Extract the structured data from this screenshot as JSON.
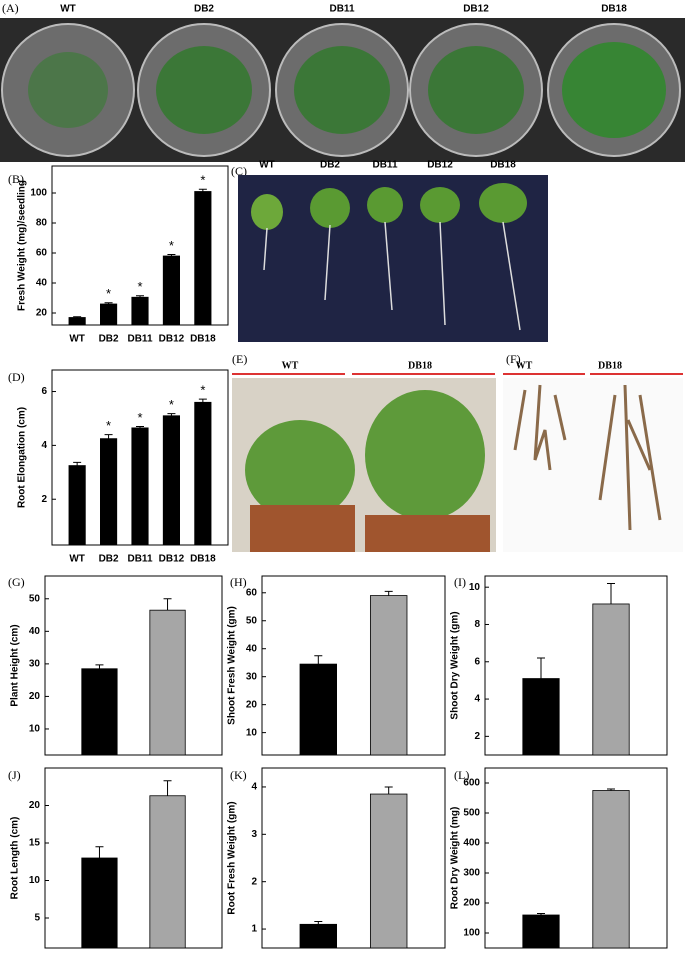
{
  "photos": [
    {
      "label": "(A)",
      "captions": [
        "WT",
        "DB2",
        "DB11",
        "DB12",
        "DB18"
      ]
    },
    {
      "label": "(C)",
      "captions": [
        "WT",
        "DB2",
        "DB11",
        "DB12",
        "DB18"
      ]
    },
    {
      "label": "(E)",
      "captions": [
        "WT",
        "DB18"
      ]
    },
    {
      "label": "(F)",
      "captions": [
        "WT",
        "DB18"
      ]
    }
  ],
  "chart_data": [
    {
      "type": "bar",
      "label": "(B)",
      "ylabel": "Fresh Weight (mg)/seedling",
      "categories": [
        "WT",
        "DB2",
        "DB11",
        "DB12",
        "DB18"
      ],
      "values": [
        17,
        26,
        30.5,
        58,
        101
      ],
      "errors": [
        0.5,
        0.8,
        1,
        1,
        1.5
      ],
      "significance": [
        null,
        "*",
        "*",
        "*",
        "*"
      ],
      "colors": [
        "#000000",
        "#000000",
        "#000000",
        "#000000",
        "#000000"
      ],
      "ylim": [
        12,
        118
      ],
      "yticks": [
        20,
        40,
        60,
        80,
        100
      ]
    },
    {
      "type": "bar",
      "label": "(D)",
      "ylabel": "Root Elongation (cm)",
      "categories": [
        "WT",
        "DB2",
        "DB11",
        "DB12",
        "DB18"
      ],
      "values": [
        3.25,
        4.25,
        4.65,
        5.1,
        5.6
      ],
      "errors": [
        0.12,
        0.15,
        0.05,
        0.08,
        0.12
      ],
      "significance": [
        null,
        "*",
        "*",
        "*",
        "*"
      ],
      "colors": [
        "#000000",
        "#000000",
        "#000000",
        "#000000",
        "#000000"
      ],
      "ylim": [
        0.3,
        6.8
      ],
      "yticks": [
        2,
        4,
        6
      ]
    },
    {
      "type": "bar",
      "label": "(G)",
      "ylabel": "Plant Height (cm)",
      "categories": [
        null,
        null
      ],
      "values": [
        28.5,
        46.5
      ],
      "errors": [
        1.2,
        3.5
      ],
      "colors": [
        "#000000",
        "#a6a6a6"
      ],
      "ylim": [
        2,
        57
      ],
      "yticks": [
        10,
        20,
        30,
        40,
        50
      ]
    },
    {
      "type": "bar",
      "label": "(H)",
      "ylabel": "Shoot Fresh Weight (gm)",
      "categories": [
        null,
        null
      ],
      "values": [
        34.5,
        59
      ],
      "errors": [
        3,
        1.5
      ],
      "colors": [
        "#000000",
        "#a6a6a6"
      ],
      "ylim": [
        2,
        66
      ],
      "yticks": [
        10,
        20,
        30,
        40,
        50,
        60
      ]
    },
    {
      "type": "bar",
      "label": "(I)",
      "ylabel": "Shoot Dry Weight (gm)",
      "categories": [
        null,
        null
      ],
      "values": [
        5.1,
        9.1
      ],
      "errors": [
        1.1,
        1.1
      ],
      "colors": [
        "#000000",
        "#a6a6a6"
      ],
      "ylim": [
        1,
        10.6
      ],
      "yticks": [
        2,
        4,
        6,
        8,
        10
      ]
    },
    {
      "type": "bar",
      "label": "(J)",
      "ylabel": "Root Length (cm)",
      "categories": [
        null,
        null
      ],
      "values": [
        13,
        21.3
      ],
      "errors": [
        1.5,
        2
      ],
      "colors": [
        "#000000",
        "#a6a6a6"
      ],
      "ylim": [
        1,
        25
      ],
      "yticks": [
        5,
        10,
        15,
        20
      ]
    },
    {
      "type": "bar",
      "label": "(K)",
      "ylabel": "Root Fresh Weight (gm)",
      "categories": [
        null,
        null
      ],
      "values": [
        1.1,
        3.85
      ],
      "errors": [
        0.06,
        0.15
      ],
      "colors": [
        "#000000",
        "#a6a6a6"
      ],
      "ylim": [
        0.6,
        4.4
      ],
      "yticks": [
        1,
        2,
        3,
        4
      ]
    },
    {
      "type": "bar",
      "label": "(L)",
      "ylabel": "Root Dry Weight (mg)",
      "categories": [
        null,
        null
      ],
      "values": [
        160,
        575
      ],
      "errors": [
        5,
        5
      ],
      "colors": [
        "#000000",
        "#a6a6a6"
      ],
      "ylim": [
        50,
        650
      ],
      "yticks": [
        100,
        200,
        300,
        400,
        500,
        600
      ]
    }
  ]
}
